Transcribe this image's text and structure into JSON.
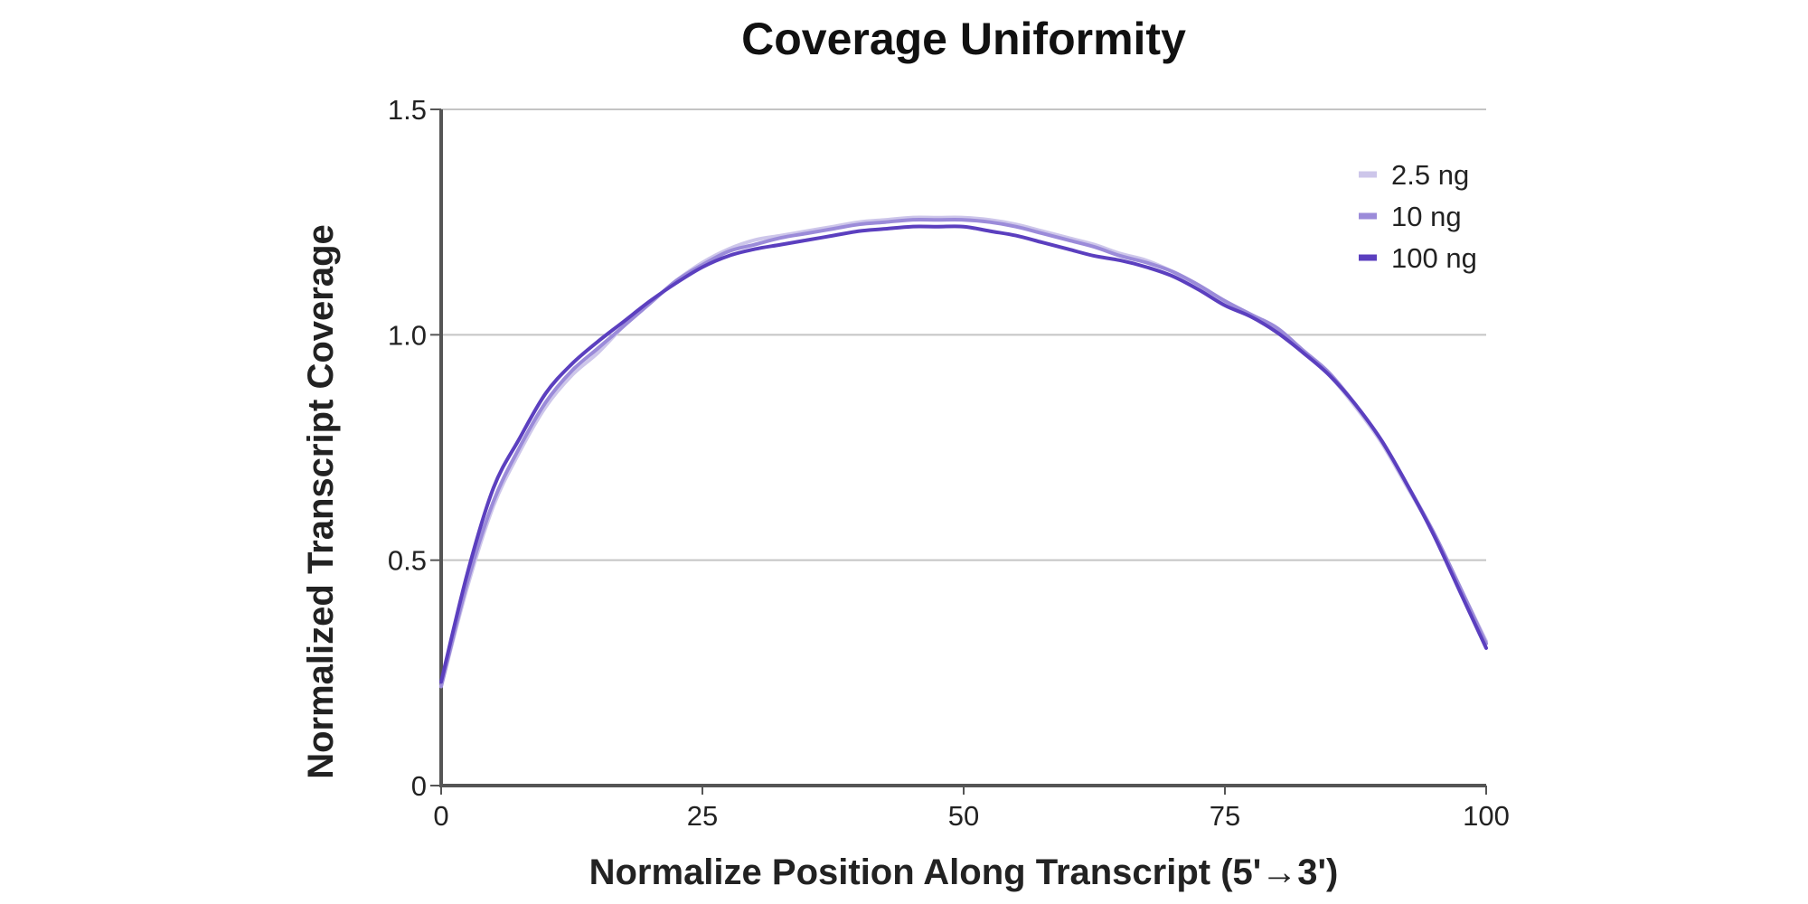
{
  "chart_data": {
    "type": "line",
    "title": "Coverage Uniformity",
    "xlabel": "Normalize Position Along Transcript (5'→3')",
    "ylabel": "Normalized Transcript Coverage",
    "xlim": [
      0,
      100
    ],
    "ylim": [
      0,
      1.5
    ],
    "x_ticks": [
      0,
      25,
      50,
      75,
      100
    ],
    "x_tick_labels": [
      "0",
      "25",
      "50",
      "75",
      "100"
    ],
    "y_ticks": [
      0,
      0.5,
      1.0,
      1.5
    ],
    "y_tick_labels": [
      "0",
      "0.5",
      "1.0",
      "1.5"
    ],
    "grid": true,
    "legend_position": "top-right",
    "x": [
      0,
      2.5,
      5,
      7.5,
      10,
      12.5,
      15,
      17.5,
      20,
      22.5,
      25,
      27.5,
      30,
      32.5,
      35,
      37.5,
      40,
      42.5,
      45,
      47.5,
      50,
      52.5,
      55,
      57.5,
      60,
      62.5,
      65,
      67.5,
      70,
      72.5,
      75,
      77.5,
      80,
      82.5,
      85,
      87.5,
      90,
      92.5,
      95,
      97.5,
      100
    ],
    "series": [
      {
        "name": "2.5 ng",
        "color": "#cdc6ea",
        "values": [
          0.22,
          0.44,
          0.62,
          0.74,
          0.84,
          0.91,
          0.96,
          1.02,
          1.07,
          1.12,
          1.16,
          1.19,
          1.21,
          1.22,
          1.23,
          1.24,
          1.25,
          1.255,
          1.26,
          1.26,
          1.26,
          1.255,
          1.245,
          1.23,
          1.215,
          1.2,
          1.18,
          1.165,
          1.14,
          1.11,
          1.07,
          1.04,
          1.01,
          0.96,
          0.91,
          0.84,
          0.76,
          0.66,
          0.56,
          0.44,
          0.32
        ]
      },
      {
        "name": "10 ng",
        "color": "#9b8bd9",
        "values": [
          0.22,
          0.45,
          0.63,
          0.75,
          0.85,
          0.92,
          0.97,
          1.02,
          1.07,
          1.12,
          1.155,
          1.185,
          1.2,
          1.215,
          1.225,
          1.235,
          1.245,
          1.25,
          1.255,
          1.255,
          1.255,
          1.25,
          1.24,
          1.225,
          1.21,
          1.195,
          1.175,
          1.16,
          1.14,
          1.11,
          1.075,
          1.045,
          1.015,
          0.965,
          0.915,
          0.845,
          0.765,
          0.665,
          0.56,
          0.44,
          0.315
        ]
      },
      {
        "name": "100 ng",
        "color": "#5b3fbf",
        "values": [
          0.23,
          0.47,
          0.66,
          0.77,
          0.87,
          0.935,
          0.985,
          1.03,
          1.075,
          1.115,
          1.15,
          1.175,
          1.19,
          1.2,
          1.21,
          1.22,
          1.23,
          1.235,
          1.24,
          1.24,
          1.24,
          1.23,
          1.22,
          1.205,
          1.19,
          1.175,
          1.165,
          1.15,
          1.13,
          1.1,
          1.065,
          1.04,
          1.005,
          0.96,
          0.91,
          0.845,
          0.765,
          0.665,
          0.555,
          0.43,
          0.305
        ]
      }
    ]
  }
}
